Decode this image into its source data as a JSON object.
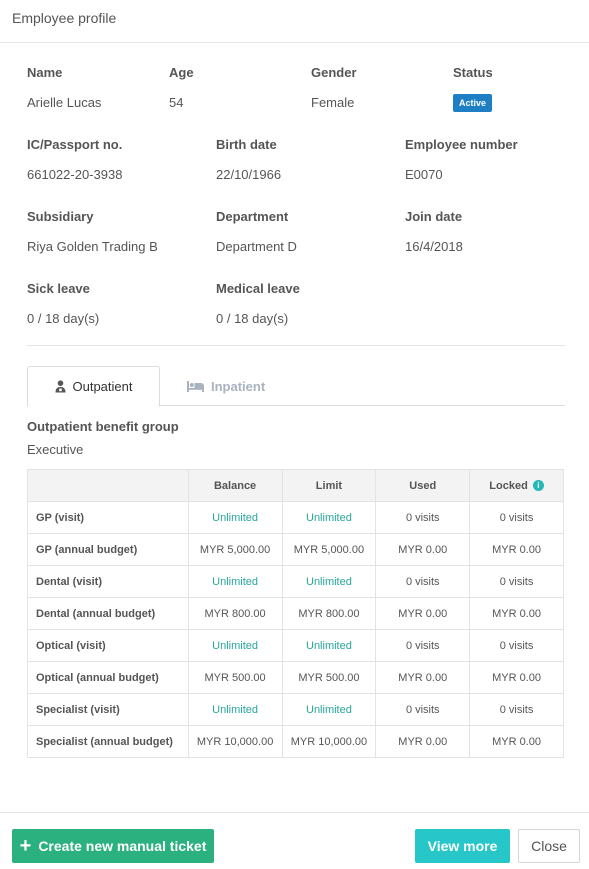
{
  "header": {
    "title": "Employee profile"
  },
  "profile": {
    "row1": [
      {
        "label": "Name",
        "value": "Arielle Lucas"
      },
      {
        "label": "Age",
        "value": "54"
      },
      {
        "label": "Gender",
        "value": "Female"
      },
      {
        "label": "Status",
        "value": "Active"
      }
    ],
    "row2": [
      {
        "label": "IC/Passport no.",
        "value": "661022-20-3938"
      },
      {
        "label": "Birth date",
        "value": "22/10/1966"
      },
      {
        "label": "Employee number",
        "value": "E0070"
      }
    ],
    "row3": [
      {
        "label": "Subsidiary",
        "value": "Riya Golden Trading B"
      },
      {
        "label": "Department",
        "value": "Department D"
      },
      {
        "label": "Join date",
        "value": "16/4/2018"
      }
    ],
    "row4": [
      {
        "label": "Sick leave",
        "value": "0 / 18 day(s)"
      },
      {
        "label": "Medical leave",
        "value": "0 / 18 day(s)"
      }
    ],
    "status_color": "#1e7fc4"
  },
  "tabs": [
    {
      "label": "Outpatient",
      "icon": "doctor-icon",
      "active": true
    },
    {
      "label": "Inpatient",
      "icon": "bed-icon",
      "active": false
    }
  ],
  "benefit": {
    "group_title": "Outpatient benefit group",
    "group_value": "Executive",
    "columns": [
      "",
      "Balance",
      "Limit",
      "Used",
      "Locked"
    ],
    "rows": [
      {
        "name": "GP (visit)",
        "balance": "Unlimited",
        "limit": "Unlimited",
        "used": "0 visits",
        "locked": "0 visits"
      },
      {
        "name": "GP (annual budget)",
        "balance": "MYR 5,000.00",
        "limit": "MYR 5,000.00",
        "used": "MYR 0.00",
        "locked": "MYR 0.00"
      },
      {
        "name": "Dental (visit)",
        "balance": "Unlimited",
        "limit": "Unlimited",
        "used": "0 visits",
        "locked": "0 visits"
      },
      {
        "name": "Dental (annual budget)",
        "balance": "MYR 800.00",
        "limit": "MYR 800.00",
        "used": "MYR 0.00",
        "locked": "MYR 0.00"
      },
      {
        "name": "Optical (visit)",
        "balance": "Unlimited",
        "limit": "Unlimited",
        "used": "0 visits",
        "locked": "0 visits"
      },
      {
        "name": "Optical (annual budget)",
        "balance": "MYR 500.00",
        "limit": "MYR 500.00",
        "used": "MYR 0.00",
        "locked": "MYR 0.00"
      },
      {
        "name": "Specialist (visit)",
        "balance": "Unlimited",
        "limit": "Unlimited",
        "used": "0 visits",
        "locked": "0 visits"
      },
      {
        "name": "Specialist (annual budget)",
        "balance": "MYR 10,000.00",
        "limit": "MYR 10,000.00",
        "used": "MYR 0.00",
        "locked": "MYR 0.00"
      }
    ]
  },
  "footer": {
    "create_label": "Create new manual ticket",
    "view_more_label": "View more",
    "close_label": "Close"
  },
  "colors": {
    "accent_green": "#2bb07f",
    "accent_teal": "#26c6c9",
    "unlimited_text": "#26a69a"
  }
}
